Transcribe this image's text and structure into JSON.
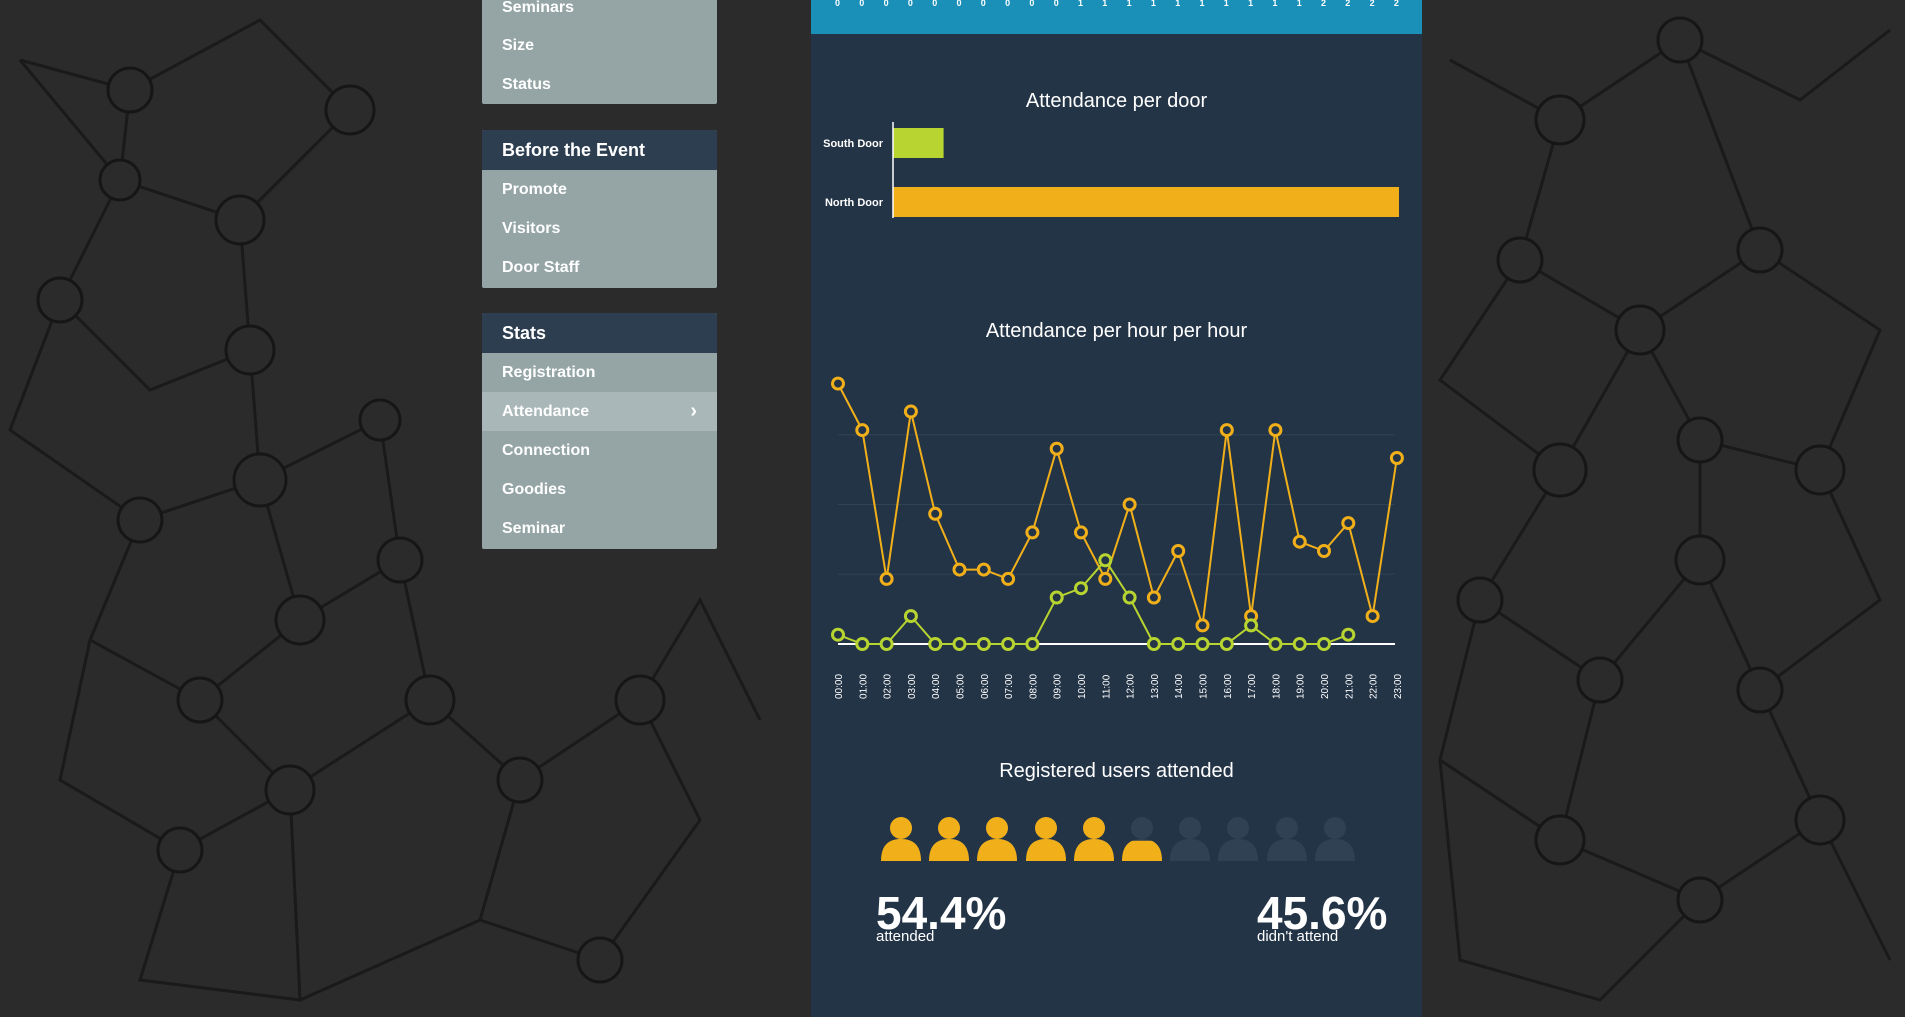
{
  "sidebar": {
    "group1": {
      "items": [
        "Seminars",
        "Size",
        "Status"
      ]
    },
    "group2": {
      "title": "Before the Event",
      "items": [
        "Promote",
        "Visitors",
        "Door Staff"
      ]
    },
    "group3": {
      "title": "Stats",
      "items": [
        "Registration",
        "Attendance",
        "Connection",
        "Goodies",
        "Seminar"
      ],
      "active": "Attendance"
    }
  },
  "main": {
    "door_chart": {
      "title": "Attendance per door"
    },
    "hour_chart": {
      "title": "Attendance per hour per hour"
    },
    "registered": {
      "title": "Registered users attended",
      "attended_pct": "54.4%",
      "attended_label": "attended",
      "not_attended_pct": "45.6%",
      "not_attended_label": "didn't attend",
      "attended_fraction": 0.544
    }
  },
  "colors": {
    "orange": "#f1b01a",
    "green": "#b8d430",
    "panel": "#243447",
    "topbar": "#1a8fb8",
    "person_empty": "#2f4152"
  },
  "chart_data": [
    {
      "type": "bar",
      "title": "Attendance per door",
      "categories": [
        "South Door",
        "North Door"
      ],
      "values": [
        10,
        100
      ],
      "colors": [
        "#b8d430",
        "#f1b01a"
      ],
      "xlim": [
        0,
        100
      ]
    },
    {
      "type": "line",
      "title": "Attendance per hour per hour",
      "x": [
        "00:00",
        "01:00",
        "02:00",
        "03:00",
        "04:00",
        "05:00",
        "06:00",
        "07:00",
        "08:00",
        "09:00",
        "10:00",
        "11:00",
        "12:00",
        "13:00",
        "14:00",
        "15:00",
        "16:00",
        "17:00",
        "18:00",
        "19:00",
        "20:00",
        "21:00",
        "22:00",
        "23:00"
      ],
      "ylim": [
        0,
        30
      ],
      "series": [
        {
          "color": "#f1b01a",
          "values": [
            28,
            23,
            7,
            25,
            14,
            8,
            8,
            7,
            12,
            21,
            12,
            7,
            15,
            5,
            10,
            2,
            23,
            3,
            23,
            11,
            10,
            13,
            3,
            20
          ]
        },
        {
          "color": "#b8d430",
          "values": [
            1,
            0,
            0,
            3,
            0,
            0,
            0,
            0,
            0,
            5,
            6,
            9,
            5,
            0,
            0,
            0,
            0,
            2,
            0,
            0,
            0,
            1,
            null,
            null
          ]
        }
      ]
    }
  ],
  "topbar_ticks": [
    "0",
    "0",
    "0",
    "0",
    "0",
    "0",
    "0",
    "0",
    "0",
    "0",
    "1",
    "1",
    "1",
    "1",
    "1",
    "1",
    "1",
    "1",
    "1",
    "1",
    "2",
    "2",
    "2",
    "2"
  ]
}
